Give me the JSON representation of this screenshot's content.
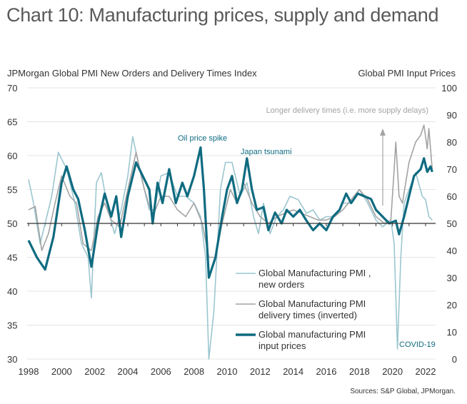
{
  "title": "Chart 10: Manufacturing prices, supply and demand",
  "colors": {
    "input_prices": "#0f6b80",
    "new_orders": "#9cc6cf",
    "delivery_times": "#a3a3a3",
    "grid": "#e4e4e4",
    "text": "#333333"
  },
  "chart_data": {
    "type": "line",
    "title": "Chart 10: Manufacturing prices, supply and demand",
    "ylabel_left": "JPMorgan Global PMI New Orders and Delivery Times Index",
    "ylabel_right": "Global PMI Input Prices",
    "ylim_left": [
      30,
      70
    ],
    "ylim_right": [
      0,
      100
    ],
    "xlim": [
      1998,
      2022.6
    ],
    "yticks_left": [
      "70",
      "65",
      "60",
      "55",
      "50",
      "45",
      "40",
      "35",
      "30"
    ],
    "yticks_right": [
      "100",
      "90",
      "80",
      "70",
      "60",
      "50",
      "40",
      "30",
      "20",
      "10",
      "0"
    ],
    "xticks": [
      "1998",
      "2000",
      "2002",
      "2004",
      "2006",
      "2008",
      "2010",
      "2012",
      "2014",
      "2016",
      "2018",
      "2020",
      "2022"
    ],
    "grid": true,
    "legend_position": "bottom-right",
    "annotations": {
      "oil": "Oil price spike",
      "japan": "Japan tsunami",
      "delivery": "Longer delivery times  (i.e. more supply delays)",
      "covid": "COVID-19"
    },
    "source": "Sources: S&P Global, JPMorgan.",
    "series": [
      {
        "name": "Global Manufacturing PMI, new orders",
        "legend": [
          "Global Manufacturing PMI ,",
          "new orders"
        ],
        "axis": "left",
        "values": [
          [
            1998.0,
            56.5
          ],
          [
            1998.3,
            53
          ],
          [
            1998.7,
            47
          ],
          [
            1999.0,
            50
          ],
          [
            1999.4,
            54
          ],
          [
            1999.8,
            60.5
          ],
          [
            2000.3,
            58
          ],
          [
            2000.8,
            53
          ],
          [
            2001.2,
            47
          ],
          [
            2001.6,
            45
          ],
          [
            2001.8,
            39
          ],
          [
            2002.1,
            56
          ],
          [
            2002.4,
            57.5
          ],
          [
            2002.8,
            52
          ],
          [
            2003.2,
            48.5
          ],
          [
            2003.6,
            52
          ],
          [
            2004.0,
            57
          ],
          [
            2004.3,
            62.8
          ],
          [
            2004.8,
            57
          ],
          [
            2005.3,
            52
          ],
          [
            2005.6,
            52
          ],
          [
            2006.0,
            57
          ],
          [
            2006.5,
            57.5
          ],
          [
            2007.0,
            54
          ],
          [
            2007.5,
            54
          ],
          [
            2008.0,
            53
          ],
          [
            2008.4,
            51
          ],
          [
            2008.7,
            45
          ],
          [
            2008.9,
            30
          ],
          [
            2009.2,
            37
          ],
          [
            2009.6,
            55
          ],
          [
            2009.9,
            59
          ],
          [
            2010.3,
            59
          ],
          [
            2010.8,
            54
          ],
          [
            2011.2,
            56
          ],
          [
            2011.6,
            51
          ],
          [
            2011.9,
            48.5
          ],
          [
            2012.2,
            53
          ],
          [
            2012.6,
            48.5
          ],
          [
            2013.0,
            51
          ],
          [
            2013.4,
            52
          ],
          [
            2013.8,
            54
          ],
          [
            2014.3,
            53.5
          ],
          [
            2014.8,
            51.5
          ],
          [
            2015.2,
            52
          ],
          [
            2015.6,
            50.5
          ],
          [
            2016.0,
            51
          ],
          [
            2016.5,
            51
          ],
          [
            2017.0,
            53
          ],
          [
            2017.5,
            53
          ],
          [
            2018.0,
            55
          ],
          [
            2018.5,
            53
          ],
          [
            2019.0,
            50.5
          ],
          [
            2019.4,
            49.5
          ],
          [
            2019.9,
            50.5
          ],
          [
            2020.1,
            47
          ],
          [
            2020.3,
            31.5
          ],
          [
            2020.5,
            45
          ],
          [
            2020.7,
            53
          ],
          [
            2021.0,
            55
          ],
          [
            2021.4,
            57.5
          ],
          [
            2021.8,
            54
          ],
          [
            2022.0,
            53.5
          ],
          [
            2022.2,
            51
          ],
          [
            2022.4,
            50.5
          ]
        ]
      },
      {
        "name": "Global Manufacturing PMI delivery times (inverted)",
        "legend": [
          "Global Manufacturing PMI",
          "delivery times (inverted)"
        ],
        "axis": "left",
        "values": [
          [
            1998.0,
            52
          ],
          [
            1998.4,
            52.5
          ],
          [
            1998.8,
            46
          ],
          [
            1999.2,
            48.5
          ],
          [
            1999.6,
            53
          ],
          [
            2000.0,
            57
          ],
          [
            2000.5,
            54
          ],
          [
            2000.9,
            53
          ],
          [
            2001.3,
            47
          ],
          [
            2001.8,
            46
          ],
          [
            2002.2,
            51
          ],
          [
            2002.6,
            53
          ],
          [
            2003.0,
            50.5
          ],
          [
            2003.5,
            49.5
          ],
          [
            2004.0,
            55
          ],
          [
            2004.5,
            60.5
          ],
          [
            2005.0,
            55
          ],
          [
            2005.5,
            51
          ],
          [
            2006.0,
            54
          ],
          [
            2006.5,
            54
          ],
          [
            2007.0,
            52
          ],
          [
            2007.5,
            51
          ],
          [
            2008.0,
            53
          ],
          [
            2008.5,
            50
          ],
          [
            2008.9,
            45
          ],
          [
            2009.3,
            45
          ],
          [
            2009.7,
            50
          ],
          [
            2010.2,
            55
          ],
          [
            2010.6,
            53
          ],
          [
            2011.0,
            56
          ],
          [
            2011.5,
            53
          ],
          [
            2012.0,
            51
          ],
          [
            2012.5,
            50
          ],
          [
            2013.0,
            51
          ],
          [
            2013.5,
            51.5
          ],
          [
            2014.0,
            52
          ],
          [
            2014.5,
            51.5
          ],
          [
            2015.0,
            51
          ],
          [
            2015.5,
            50.5
          ],
          [
            2016.0,
            50.5
          ],
          [
            2016.5,
            51
          ],
          [
            2017.0,
            52
          ],
          [
            2017.5,
            53.5
          ],
          [
            2018.0,
            55
          ],
          [
            2018.5,
            53.5
          ],
          [
            2019.0,
            51
          ],
          [
            2019.5,
            50
          ],
          [
            2019.9,
            50.5
          ],
          [
            2020.1,
            58
          ],
          [
            2020.2,
            62
          ],
          [
            2020.4,
            54
          ],
          [
            2020.6,
            53
          ],
          [
            2021.0,
            59
          ],
          [
            2021.4,
            62
          ],
          [
            2021.7,
            63
          ],
          [
            2021.9,
            64.5
          ],
          [
            2022.1,
            61
          ],
          [
            2022.2,
            64
          ],
          [
            2022.4,
            58
          ]
        ]
      },
      {
        "name": "Global manufacturing PMI input prices",
        "legend": [
          "Global manufacturing PMI",
          "input prices"
        ],
        "axis": "right",
        "values": [
          [
            1998.0,
            43.75
          ],
          [
            1998.5,
            37.5
          ],
          [
            1999.0,
            33
          ],
          [
            1999.5,
            45
          ],
          [
            2000.0,
            65
          ],
          [
            2000.3,
            71
          ],
          [
            2000.7,
            62.5
          ],
          [
            2001.0,
            59
          ],
          [
            2001.4,
            47.5
          ],
          [
            2001.8,
            34
          ],
          [
            2002.2,
            50
          ],
          [
            2002.6,
            61
          ],
          [
            2003.0,
            52.5
          ],
          [
            2003.3,
            60
          ],
          [
            2003.6,
            45
          ],
          [
            2004.0,
            60
          ],
          [
            2004.5,
            72.5
          ],
          [
            2004.9,
            67.5
          ],
          [
            2005.3,
            62.5
          ],
          [
            2005.5,
            50
          ],
          [
            2005.8,
            65
          ],
          [
            2006.1,
            57.5
          ],
          [
            2006.5,
            70
          ],
          [
            2006.9,
            57.5
          ],
          [
            2007.3,
            65
          ],
          [
            2007.6,
            60
          ],
          [
            2008.0,
            67.5
          ],
          [
            2008.4,
            78
          ],
          [
            2008.6,
            62.5
          ],
          [
            2008.9,
            30
          ],
          [
            2009.3,
            37.5
          ],
          [
            2009.7,
            52.5
          ],
          [
            2010.0,
            62.5
          ],
          [
            2010.3,
            67.5
          ],
          [
            2010.6,
            57.5
          ],
          [
            2010.9,
            62.5
          ],
          [
            2011.2,
            74
          ],
          [
            2011.5,
            62.5
          ],
          [
            2011.8,
            55
          ],
          [
            2012.2,
            56
          ],
          [
            2012.5,
            47.5
          ],
          [
            2012.9,
            54
          ],
          [
            2013.3,
            50
          ],
          [
            2013.6,
            55
          ],
          [
            2014.0,
            52.5
          ],
          [
            2014.4,
            55
          ],
          [
            2014.8,
            51
          ],
          [
            2015.2,
            47.5
          ],
          [
            2015.6,
            50
          ],
          [
            2016.0,
            47.5
          ],
          [
            2016.4,
            52.5
          ],
          [
            2016.8,
            55
          ],
          [
            2017.2,
            61
          ],
          [
            2017.5,
            57.5
          ],
          [
            2017.9,
            61
          ],
          [
            2018.3,
            60
          ],
          [
            2018.7,
            59
          ],
          [
            2019.0,
            55
          ],
          [
            2019.4,
            52.5
          ],
          [
            2019.8,
            50
          ],
          [
            2020.2,
            51
          ],
          [
            2020.4,
            46
          ],
          [
            2020.7,
            52.5
          ],
          [
            2021.0,
            60
          ],
          [
            2021.3,
            67.5
          ],
          [
            2021.7,
            70
          ],
          [
            2021.9,
            74
          ],
          [
            2022.1,
            69
          ],
          [
            2022.3,
            71
          ],
          [
            2022.4,
            69
          ]
        ]
      }
    ]
  }
}
